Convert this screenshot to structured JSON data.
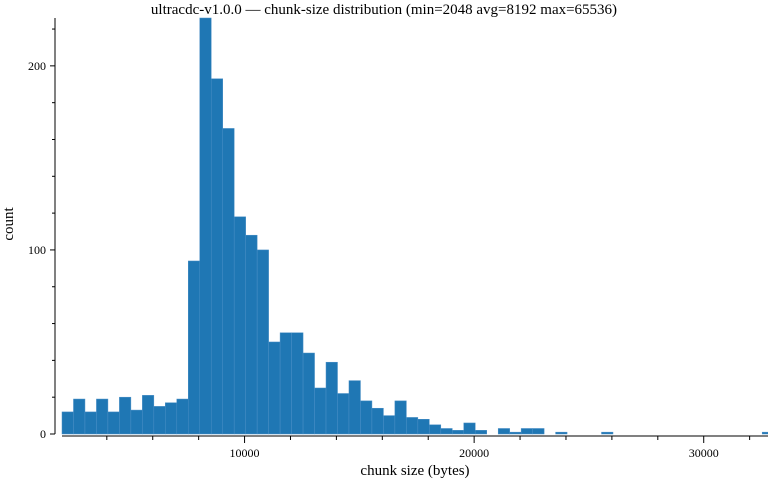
{
  "chart_data": {
    "type": "bar",
    "title": "ultracdc-v1.0.0 — chunk-size distribution (min=2048 avg=8192 max=65536)",
    "xlabel": "chunk size (bytes)",
    "ylabel": "count",
    "xlim": [
      2048,
      32800
    ],
    "ylim": [
      0,
      226
    ],
    "x_ticks": [
      10000,
      20000,
      30000
    ],
    "y_ticks": [
      0,
      100,
      200
    ],
    "grid": false,
    "bin_width": 500,
    "bins": [
      {
        "x": 2048,
        "count": 12
      },
      {
        "x": 2548,
        "count": 19
      },
      {
        "x": 3048,
        "count": 12
      },
      {
        "x": 3548,
        "count": 19
      },
      {
        "x": 4048,
        "count": 12
      },
      {
        "x": 4548,
        "count": 20
      },
      {
        "x": 5048,
        "count": 13
      },
      {
        "x": 5548,
        "count": 21
      },
      {
        "x": 6048,
        "count": 15
      },
      {
        "x": 6548,
        "count": 17
      },
      {
        "x": 7048,
        "count": 19
      },
      {
        "x": 7548,
        "count": 94
      },
      {
        "x": 8048,
        "count": 226
      },
      {
        "x": 8548,
        "count": 193
      },
      {
        "x": 9048,
        "count": 166
      },
      {
        "x": 9548,
        "count": 118
      },
      {
        "x": 10048,
        "count": 108
      },
      {
        "x": 10548,
        "count": 100
      },
      {
        "x": 11048,
        "count": 50
      },
      {
        "x": 11548,
        "count": 55
      },
      {
        "x": 12048,
        "count": 55
      },
      {
        "x": 12548,
        "count": 44
      },
      {
        "x": 13048,
        "count": 25
      },
      {
        "x": 13548,
        "count": 39
      },
      {
        "x": 14048,
        "count": 22
      },
      {
        "x": 14548,
        "count": 29
      },
      {
        "x": 15048,
        "count": 18
      },
      {
        "x": 15548,
        "count": 14
      },
      {
        "x": 16048,
        "count": 10
      },
      {
        "x": 16548,
        "count": 18
      },
      {
        "x": 17048,
        "count": 9
      },
      {
        "x": 17548,
        "count": 8
      },
      {
        "x": 18048,
        "count": 5
      },
      {
        "x": 18548,
        "count": 3
      },
      {
        "x": 19048,
        "count": 2
      },
      {
        "x": 19548,
        "count": 6
      },
      {
        "x": 20048,
        "count": 2
      },
      {
        "x": 21048,
        "count": 3
      },
      {
        "x": 21548,
        "count": 1
      },
      {
        "x": 22048,
        "count": 3
      },
      {
        "x": 22548,
        "count": 3
      },
      {
        "x": 23548,
        "count": 1
      },
      {
        "x": 25548,
        "count": 1
      },
      {
        "x": 32548,
        "count": 1
      }
    ],
    "color": "#1f77b4"
  }
}
